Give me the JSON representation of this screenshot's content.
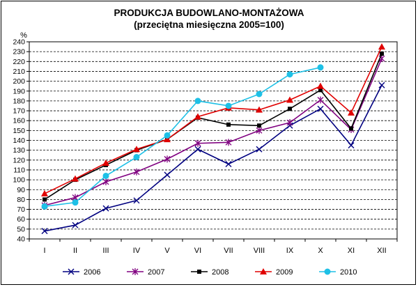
{
  "chart_data": {
    "type": "line",
    "title": "PRODUKCJA BUDOWLANO-MONTAŻOWA",
    "subtitle": "(przeciętna miesięczna 2005=100)",
    "ylabel": "%",
    "xlabel": "",
    "ylim": [
      40,
      240
    ],
    "ytick_step": 10,
    "grid": "horizontal dashed",
    "legend_position": "bottom",
    "categories": [
      "I",
      "II",
      "III",
      "IV",
      "V",
      "VI",
      "VII",
      "VIII",
      "IX",
      "X",
      "XI",
      "XII"
    ],
    "series": [
      {
        "name": "2006",
        "color": "#000080",
        "marker": "x",
        "values": [
          48,
          54,
          71,
          79,
          105,
          131,
          116,
          131,
          155,
          172,
          135,
          196
        ]
      },
      {
        "name": "2007",
        "color": "#800080",
        "marker": "star",
        "values": [
          74,
          82,
          98,
          108,
          121,
          137,
          138,
          150,
          158,
          181,
          151,
          223
        ]
      },
      {
        "name": "2008",
        "color": "#000000",
        "marker": "square",
        "values": [
          80,
          100,
          115,
          130,
          141,
          163,
          156,
          155,
          172,
          191,
          152,
          228
        ]
      },
      {
        "name": "2009",
        "color": "#e00000",
        "marker": "triangle",
        "values": [
          86,
          101,
          117,
          131,
          141,
          164,
          173,
          171,
          181,
          195,
          168,
          235
        ]
      },
      {
        "name": "2010",
        "color": "#1ec0e6",
        "marker": "circle",
        "values": [
          73,
          77,
          104,
          123,
          145,
          180,
          175,
          187,
          207,
          214,
          null,
          null
        ]
      }
    ]
  }
}
